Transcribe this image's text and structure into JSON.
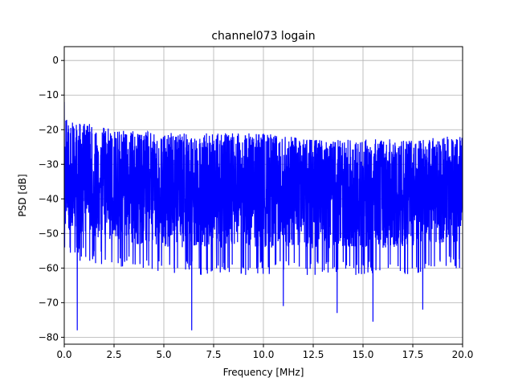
{
  "chart_data": {
    "type": "line",
    "title": "channel073 logain",
    "xlabel": "Frequency [MHz]",
    "ylabel": "PSD [dB]",
    "xlim": [
      0,
      20
    ],
    "ylim": [
      -82,
      4
    ],
    "grid": true,
    "x_ticks": [
      0,
      2.5,
      5,
      7.5,
      10,
      12.5,
      15,
      17.5,
      20
    ],
    "x_tick_labels": [
      "0.0",
      "2.5",
      "5.0",
      "7.5",
      "10.0",
      "12.5",
      "15.0",
      "17.5",
      "20.0"
    ],
    "y_ticks": [
      0,
      -10,
      -20,
      -30,
      -40,
      -50,
      -60,
      -70,
      -80
    ],
    "y_tick_labels": [
      "0",
      "−10",
      "−20",
      "−30",
      "−40",
      "−50",
      "−60",
      "−70",
      "−80"
    ],
    "series": [
      {
        "color": "#0000ff",
        "description": "dense noisy PSD trace; upper envelope decreases from about -17 dB near 0 MHz to about -23 dB near 20 MHz; lower envelope mostly between -55 and -65 dB with dips to -78 dB",
        "start_value": -12,
        "upper_envelope": [
          [
            0,
            -17
          ],
          [
            2.5,
            -20
          ],
          [
            5,
            -21
          ],
          [
            7.5,
            -21
          ],
          [
            10,
            -21
          ],
          [
            12.5,
            -23
          ],
          [
            15,
            -23
          ],
          [
            17.5,
            -23
          ],
          [
            20,
            -22
          ]
        ],
        "lower_envelope": [
          [
            0,
            -55
          ],
          [
            2.5,
            -58
          ],
          [
            5,
            -60
          ],
          [
            7.5,
            -60
          ],
          [
            10,
            -60
          ],
          [
            12.5,
            -60
          ],
          [
            15,
            -60
          ],
          [
            17.5,
            -60
          ],
          [
            20,
            -58
          ]
        ],
        "notable_dips": [
          [
            0.65,
            -78
          ],
          [
            6.4,
            -78
          ],
          [
            11.0,
            -71
          ],
          [
            13.7,
            -73
          ],
          [
            15.5,
            -75.5
          ],
          [
            18.0,
            -72
          ]
        ]
      }
    ]
  }
}
